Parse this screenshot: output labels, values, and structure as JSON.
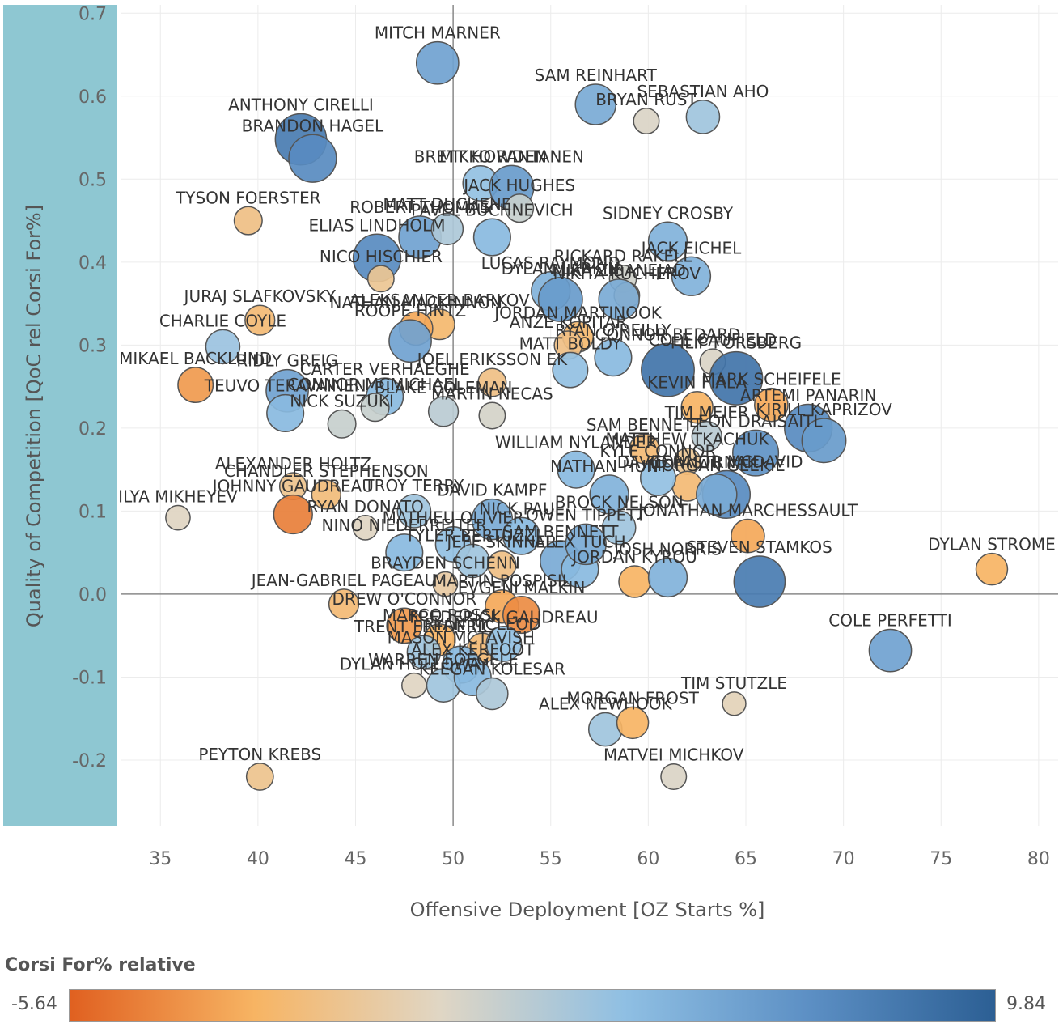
{
  "chart_data": {
    "type": "scatter",
    "xlabel": "Offensive Deployment [OZ Starts %]",
    "ylabel": "Quality of Competition [QoC rel Corsi For%]",
    "xlim": [
      33,
      81
    ],
    "ylim": [
      -0.28,
      0.71
    ],
    "xticks": [
      35,
      40,
      45,
      50,
      55,
      60,
      65,
      70,
      75,
      80
    ],
    "yticks": [
      -0.2,
      -0.1,
      0.0,
      0.1,
      0.2,
      0.3,
      0.4,
      0.5,
      0.6,
      0.7
    ],
    "reference_lines": {
      "x": 50,
      "y": 0
    },
    "grid": true,
    "color_legend": {
      "title": "Corsi For% relative",
      "min_label": "-5.64",
      "max_label": "9.84",
      "min": -5.64,
      "max": 9.84,
      "colors": [
        "#e06020",
        "#f7b463",
        "#e0d6c4",
        "#8fbfe3",
        "#5c8fc4",
        "#2c5f94"
      ]
    },
    "points": [
      {
        "label": "MITCH MARNER",
        "x": 49.2,
        "y": 0.64,
        "c": 5.5
      },
      {
        "label": "SAM REINHART",
        "x": 57.3,
        "y": 0.59,
        "c": 5.0
      },
      {
        "label": "BRYAN RUST",
        "x": 59.9,
        "y": 0.57,
        "c": 0.8
      },
      {
        "label": "SEBASTIAN AHO",
        "x": 62.8,
        "y": 0.575,
        "c": 3.0
      },
      {
        "label": "ANTHONY CIRELLI",
        "x": 42.2,
        "y": 0.548,
        "c": 8.0
      },
      {
        "label": "BRANDON HAGEL",
        "x": 42.8,
        "y": 0.525,
        "c": 7.0
      },
      {
        "label": "TYSON FOERSTER",
        "x": 39.5,
        "y": 0.45,
        "c": -1.5
      },
      {
        "label": "ROBERT THOMAS",
        "x": 48.3,
        "y": 0.43,
        "c": 5.5
      },
      {
        "label": "MATT DUCHENE",
        "x": 49.7,
        "y": 0.44,
        "c": 2.5
      },
      {
        "label": "BRETT HOWDEN",
        "x": 51.4,
        "y": 0.495,
        "c": 3.5
      },
      {
        "label": "MIKKO RANTANEN",
        "x": 53.0,
        "y": 0.49,
        "c": 6.0
      },
      {
        "label": "JACK HUGHES",
        "x": 53.4,
        "y": 0.465,
        "c": 1.5
      },
      {
        "label": "PAVEL BUCHNEVICH",
        "x": 52.0,
        "y": 0.43,
        "c": 4.0
      },
      {
        "label": "SIDNEY CROSBY",
        "x": 61.0,
        "y": 0.425,
        "c": 4.5
      },
      {
        "label": "ELIAS LINDHOLM",
        "x": 46.1,
        "y": 0.405,
        "c": 7.0
      },
      {
        "label": "JACK EICHEL",
        "x": 62.2,
        "y": 0.383,
        "c": 4.5
      },
      {
        "label": "NICO HISCHIER",
        "x": 46.3,
        "y": 0.38,
        "c": -1.0
      },
      {
        "label": "RICKARD RAKELL",
        "x": 58.7,
        "y": 0.38,
        "c": 1.2
      },
      {
        "label": "NIKITA KUCHEROV",
        "x": 58.9,
        "y": 0.36,
        "c": -0.8
      },
      {
        "label": "LUCAS RAYMOND",
        "x": 55.0,
        "y": 0.365,
        "c": 4.5
      },
      {
        "label": "DYLAN LARKIN",
        "x": 55.5,
        "y": 0.355,
        "c": 6.0
      },
      {
        "label": "MIKA ZIBANEJAD",
        "x": 58.5,
        "y": 0.355,
        "c": 5.0
      },
      {
        "label": "JURAJ SLAFKOVSKY",
        "x": 40.1,
        "y": 0.33,
        "c": -2.0
      },
      {
        "label": "ALEKSANDER BARKOV",
        "x": 49.3,
        "y": 0.325,
        "c": -2.2
      },
      {
        "label": "NATHAN MACKINNON",
        "x": 48.1,
        "y": 0.32,
        "c": -3.0
      },
      {
        "label": "ROOPE HINTZ",
        "x": 47.8,
        "y": 0.305,
        "c": 5.5
      },
      {
        "label": "CHARLIE COYLE",
        "x": 38.2,
        "y": 0.298,
        "c": 3.2
      },
      {
        "label": "JORDAN MARTINOOK",
        "x": 56.4,
        "y": 0.31,
        "c": -2.2
      },
      {
        "label": "ANZE KOPITAR",
        "x": 55.9,
        "y": 0.3,
        "c": -1.5
      },
      {
        "label": "RYAN O'REILLY",
        "x": 58.2,
        "y": 0.285,
        "c": 4.0
      },
      {
        "label": "CONNOR BEDARD",
        "x": 61.0,
        "y": 0.27,
        "c": 8.5
      },
      {
        "label": "COLE CAUFIELD",
        "x": 63.3,
        "y": 0.28,
        "c": 0.8
      },
      {
        "label": "FILIP FORSBERG",
        "x": 64.5,
        "y": 0.26,
        "c": 8.5
      },
      {
        "label": "MATT BOLDY",
        "x": 56.0,
        "y": 0.27,
        "c": 3.5
      },
      {
        "label": "JOEL ERIKSSON EK",
        "x": 52.0,
        "y": 0.255,
        "c": -1.5
      },
      {
        "label": "MIKAEL BACKLUND",
        "x": 36.8,
        "y": 0.252,
        "c": -3.5
      },
      {
        "label": "RIDLY GREIG",
        "x": 41.5,
        "y": 0.245,
        "c": 5.5
      },
      {
        "label": "CARTER VERHAEGHE",
        "x": 46.5,
        "y": 0.238,
        "c": 4.0
      },
      {
        "label": "CONNOR MCMICHAEL",
        "x": 46.0,
        "y": 0.225,
        "c": 1.5
      },
      {
        "label": "TEUVO TERAVAINEN",
        "x": 41.4,
        "y": 0.218,
        "c": 4.0
      },
      {
        "label": "BLAKE COLEMAN",
        "x": 49.5,
        "y": 0.22,
        "c": 2.0
      },
      {
        "label": "MARTIN NECAS",
        "x": 52.0,
        "y": 0.215,
        "c": 1.0
      },
      {
        "label": "NICK SUZUKI",
        "x": 44.3,
        "y": 0.205,
        "c": 1.5
      },
      {
        "label": "KEVIN FIALA",
        "x": 62.5,
        "y": 0.225,
        "c": -2.5
      },
      {
        "label": "MARK SCHEIFELE",
        "x": 66.3,
        "y": 0.228,
        "c": -3.0
      },
      {
        "label": "ARTEMI PANARIN",
        "x": 68.2,
        "y": 0.2,
        "c": 7.0
      },
      {
        "label": "KIRILL KAPRIZOV",
        "x": 69.0,
        "y": 0.185,
        "c": 6.0
      },
      {
        "label": "TIM MEIER",
        "x": 63.0,
        "y": 0.19,
        "c": 2.0
      },
      {
        "label": "SAM BENNETT",
        "x": 59.8,
        "y": 0.175,
        "c": -2.0
      },
      {
        "label": "MATTHEW TKACHUK",
        "x": 62.0,
        "y": 0.16,
        "c": -1.0
      },
      {
        "label": "LEON DRAISAITL",
        "x": 65.5,
        "y": 0.17,
        "c": 6.5
      },
      {
        "label": "CONNOR MCDAVID",
        "x": 64.0,
        "y": 0.12,
        "c": 7.0
      },
      {
        "label": "DAVID PASTRNAK",
        "x": 62.0,
        "y": 0.13,
        "c": -2.0
      },
      {
        "label": "MORGAN GEEKIE",
        "x": 63.5,
        "y": 0.12,
        "c": 5.0
      },
      {
        "label": "WILLIAM NYLANDER",
        "x": 56.3,
        "y": 0.15,
        "c": 4.0
      },
      {
        "label": "KYLE CONNOR",
        "x": 60.5,
        "y": 0.14,
        "c": 3.5
      },
      {
        "label": "NATHAN HUNT",
        "x": 58.0,
        "y": 0.12,
        "c": 4.5
      },
      {
        "label": "ALEXANDER HOLTZ",
        "x": 41.8,
        "y": 0.13,
        "c": -1.2
      },
      {
        "label": "CHANDLER STEPHENSON",
        "x": 43.5,
        "y": 0.12,
        "c": -1.8
      },
      {
        "label": "ILYA MIKHEYEV",
        "x": 35.9,
        "y": 0.092,
        "c": 0.5
      },
      {
        "label": "JOHNNY GAUDREAU",
        "x": 41.8,
        "y": 0.096,
        "c": -4.5
      },
      {
        "label": "RYAN DONATO",
        "x": 45.5,
        "y": 0.08,
        "c": 0.5
      },
      {
        "label": "TROY TERRY",
        "x": 48.0,
        "y": 0.1,
        "c": 3.0
      },
      {
        "label": "DAVID KAMPF",
        "x": 52.0,
        "y": 0.09,
        "c": 5.0
      },
      {
        "label": "NICK PAUL",
        "x": 53.5,
        "y": 0.07,
        "c": 4.0
      },
      {
        "label": "JONATHAN MARCHESSAULT",
        "x": 65.1,
        "y": 0.07,
        "c": -3.0
      },
      {
        "label": "BROCK NELSON",
        "x": 58.5,
        "y": 0.08,
        "c": 3.0
      },
      {
        "label": "MATHIEU OLIVIER",
        "x": 50.0,
        "y": 0.06,
        "c": 3.5
      },
      {
        "label": "NINO NIEDERREITER",
        "x": 47.5,
        "y": 0.05,
        "c": 4.0
      },
      {
        "label": "TYLER BERTUZZI",
        "x": 51.0,
        "y": 0.04,
        "c": 3.0
      },
      {
        "label": "JEFF SKINNER",
        "x": 52.5,
        "y": 0.035,
        "c": -1.5
      },
      {
        "label": "SAM BENNETT",
        "x": 55.5,
        "y": 0.04,
        "c": 5.0
      },
      {
        "label": "ALEX TUCH",
        "x": 56.5,
        "y": 0.03,
        "c": 4.0
      },
      {
        "label": "JORDAN KYROU",
        "x": 59.3,
        "y": 0.015,
        "c": -2.5
      },
      {
        "label": "JOSH NORRIS",
        "x": 61.0,
        "y": 0.02,
        "c": 4.5
      },
      {
        "label": "STEVEN STAMKOS",
        "x": 65.7,
        "y": 0.015,
        "c": 8.0
      },
      {
        "label": "DYLAN STROME",
        "x": 77.6,
        "y": 0.03,
        "c": -2.5
      },
      {
        "label": "BRAYDEN SCHENN",
        "x": 49.6,
        "y": 0.012,
        "c": -0.5
      },
      {
        "label": "JEAN-GABRIEL PAGEAU",
        "x": 44.4,
        "y": -0.012,
        "c": -2.0
      },
      {
        "label": "MARTIN POSPISIL",
        "x": 52.5,
        "y": -0.015,
        "c": -3.0
      },
      {
        "label": "EVGENI MALKIN",
        "x": 53.5,
        "y": -0.025,
        "c": -4.0
      },
      {
        "label": "DREW O'CONNOR",
        "x": 47.5,
        "y": -0.038,
        "c": -3.5
      },
      {
        "label": "MARCO ROSSI",
        "x": 49.3,
        "y": -0.055,
        "c": -2.5
      },
      {
        "label": "RYAN MCLEOD",
        "x": 51.5,
        "y": -0.065,
        "c": -2.0
      },
      {
        "label": "FREDERICK GAUDREAU",
        "x": 52.6,
        "y": -0.06,
        "c": 3.5
      },
      {
        "label": "TRENT FREDERIC",
        "x": 48.5,
        "y": -0.07,
        "c": 3.0
      },
      {
        "label": "MASON MCTAVISH",
        "x": 50.4,
        "y": -0.085,
        "c": 4.0
      },
      {
        "label": "DYLAN HOLLOWAY",
        "x": 48.0,
        "y": -0.11,
        "c": 0.5
      },
      {
        "label": "WARREN FOEGELE",
        "x": 49.5,
        "y": -0.11,
        "c": 3.0
      },
      {
        "label": "ALEX KERFOOT",
        "x": 51.0,
        "y": -0.1,
        "c": 4.0
      },
      {
        "label": "KEEGAN KOLESAR",
        "x": 52.0,
        "y": -0.12,
        "c": 2.5
      },
      {
        "label": "COLE PERFETTI",
        "x": 72.4,
        "y": -0.068,
        "c": 5.5
      },
      {
        "label": "TIM STUTZLE",
        "x": 64.4,
        "y": -0.132,
        "c": 0.2
      },
      {
        "label": "ALEX NEWHOOK",
        "x": 57.8,
        "y": -0.163,
        "c": 3.0
      },
      {
        "label": "MORGAN FROST",
        "x": 59.2,
        "y": -0.155,
        "c": -2.5
      },
      {
        "label": "MATVEI MICHKOV",
        "x": 61.3,
        "y": -0.22,
        "c": 0.8
      },
      {
        "label": "PEYTON KREBS",
        "x": 40.1,
        "y": -0.22,
        "c": -1.2
      },
      {
        "label": "OWEN TIPPETT",
        "x": 56.8,
        "y": 0.06,
        "c": 5.0
      }
    ]
  }
}
